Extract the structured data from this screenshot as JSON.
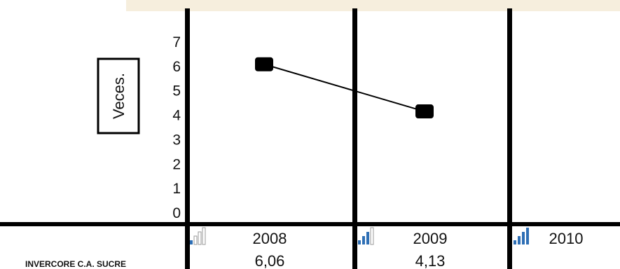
{
  "chart_data": {
    "type": "line",
    "ylabel": "Veces.",
    "ylim": [
      0,
      7
    ],
    "yticks": [
      "0",
      "1",
      "2",
      "3",
      "4",
      "5",
      "6",
      "7"
    ],
    "categories": [
      "2008",
      "2009",
      "2010"
    ],
    "series": [
      {
        "name": "INVERCORE C.A. SUCRE",
        "values": [
          6.06,
          4.13,
          null
        ],
        "labels": [
          "6,06",
          "4,13",
          ""
        ]
      }
    ],
    "legend": "table-below",
    "grid": false,
    "colors": {
      "line": "#000000",
      "marker": "#000000",
      "legend_icon": "#2e6fb5"
    }
  }
}
